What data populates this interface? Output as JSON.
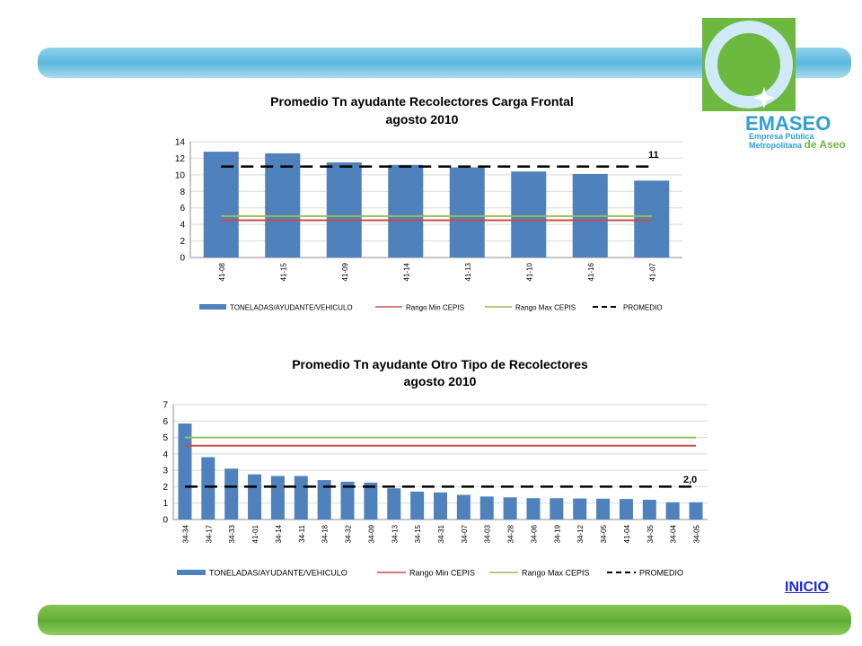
{
  "logo": {
    "brand": "EMASEO",
    "line1": "Empresa Pública",
    "line2_part1": "Metropolitana ",
    "line2_part2": "de Aseo"
  },
  "nav": {
    "inicio_label": "INICIO"
  },
  "colors": {
    "bar": "#4f81bd",
    "rango_min": "#c0504d",
    "rango_max": "#9bbb59",
    "promedio": "#000000",
    "band_top": "#6ec3e4",
    "band_bottom": "#6db83f",
    "logo_green": "#6db83f",
    "logo_blue": "#2f9fd3"
  },
  "chart_data": [
    {
      "type": "bar",
      "title": "Promedio Tn ayudante Recolectores Carga Frontal",
      "subtitle": "agosto 2010",
      "categories": [
        "41-08",
        "41-15",
        "41-09",
        "41-14",
        "41-13",
        "41-10",
        "41-16",
        "41-07"
      ],
      "series": [
        {
          "name": "TONELADAS/AYUDANTE/VEHICULO",
          "kind": "bar",
          "values": [
            12.8,
            12.6,
            11.5,
            11.2,
            10.9,
            10.4,
            10.1,
            9.3
          ]
        },
        {
          "name": "Rango Min CEPIS",
          "kind": "line",
          "values": [
            4.5,
            4.5,
            4.5,
            4.5,
            4.5,
            4.5,
            4.5,
            4.5
          ]
        },
        {
          "name": "Rango Max CEPIS",
          "kind": "line",
          "values": [
            5,
            5,
            5,
            5,
            5,
            5,
            5,
            5
          ]
        },
        {
          "name": "PROMEDIO",
          "kind": "dashed",
          "values": [
            11,
            11,
            11,
            11,
            11,
            11,
            11,
            11
          ]
        }
      ],
      "ylim": [
        0,
        14
      ],
      "yticks": [
        0,
        2,
        4,
        6,
        8,
        10,
        12,
        14
      ],
      "grid": true,
      "legend": "bottom",
      "annotation": "11"
    },
    {
      "type": "bar",
      "title": "Promedio Tn ayudante Otro Tipo de Recolectores",
      "subtitle": "agosto 2010",
      "categories": [
        "34-34",
        "34-17",
        "34-33",
        "41-01",
        "34-14",
        "34-11",
        "34-18",
        "34-32",
        "34-09",
        "34-13",
        "34-15",
        "34-31",
        "34-07",
        "34-03",
        "34-28",
        "34-06",
        "34-19",
        "34-12",
        "34-05",
        "41-04",
        "34-35",
        "34-04",
        "34-05"
      ],
      "series": [
        {
          "name": "TONELADAS/AYUDANTE/VEHICULO",
          "kind": "bar",
          "values": [
            5.85,
            3.8,
            3.1,
            2.75,
            2.65,
            2.65,
            2.4,
            2.3,
            2.25,
            1.9,
            1.7,
            1.65,
            1.5,
            1.4,
            1.35,
            1.3,
            1.3,
            1.28,
            1.27,
            1.25,
            1.2,
            1.05,
            1.05
          ]
        },
        {
          "name": "Rango Min CEPIS",
          "kind": "line",
          "values": [
            4.5,
            4.5,
            4.5,
            4.5,
            4.5,
            4.5,
            4.5,
            4.5,
            4.5,
            4.5,
            4.5,
            4.5,
            4.5,
            4.5,
            4.5,
            4.5,
            4.5,
            4.5,
            4.5,
            4.5,
            4.5,
            4.5,
            4.5
          ]
        },
        {
          "name": "Rango Max CEPIS",
          "kind": "line",
          "values": [
            5,
            5,
            5,
            5,
            5,
            5,
            5,
            5,
            5,
            5,
            5,
            5,
            5,
            5,
            5,
            5,
            5,
            5,
            5,
            5,
            5,
            5,
            5
          ]
        },
        {
          "name": "PROMEDIO",
          "kind": "dashed",
          "values": [
            2.0,
            2.0,
            2.0,
            2.0,
            2.0,
            2.0,
            2.0,
            2.0,
            2.0,
            2.0,
            2.0,
            2.0,
            2.0,
            2.0,
            2.0,
            2.0,
            2.0,
            2.0,
            2.0,
            2.0,
            2.0,
            2.0,
            2.0
          ]
        }
      ],
      "ylim": [
        0,
        7
      ],
      "yticks": [
        0,
        1,
        2,
        3,
        4,
        5,
        6,
        7
      ],
      "grid": true,
      "legend": "bottom",
      "annotation": "2,0"
    }
  ]
}
